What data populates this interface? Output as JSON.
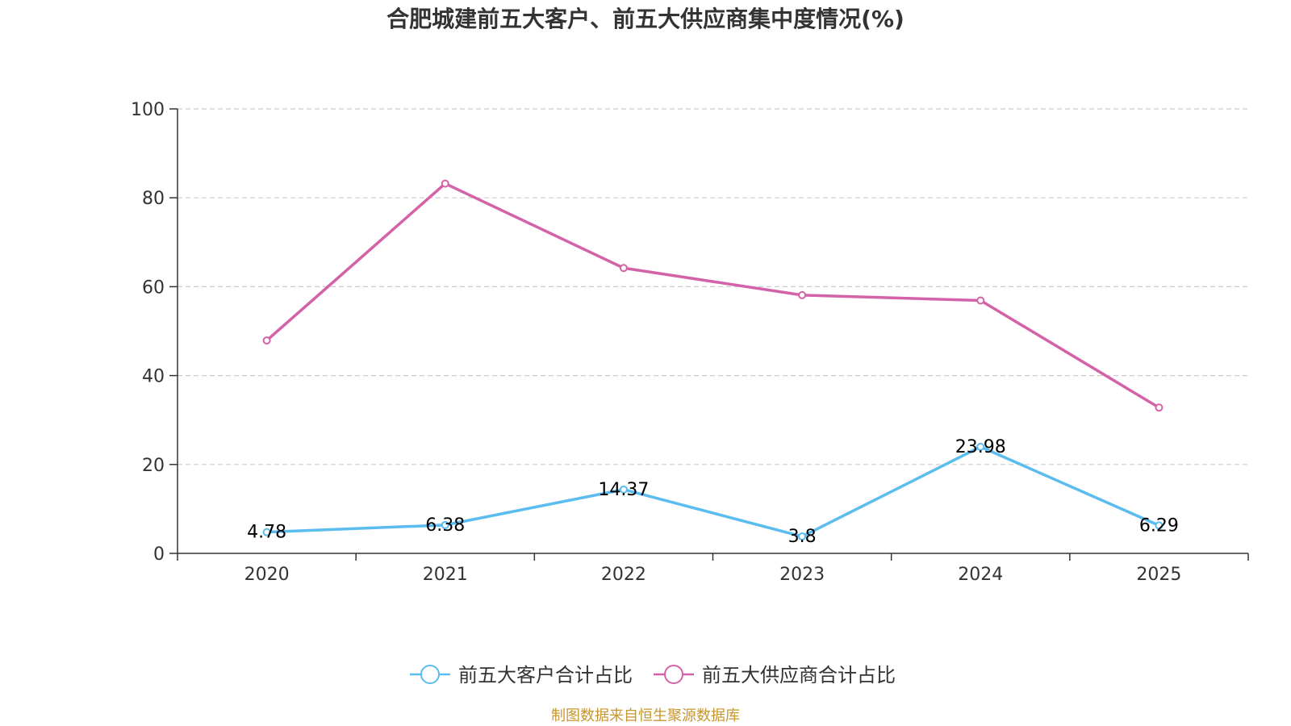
{
  "chart_data": {
    "type": "line",
    "title": "合肥城建前五大客户、前五大供应商集中度情况(%)",
    "categories": [
      "2020",
      "2021",
      "2022",
      "2023",
      "2024",
      "2025"
    ],
    "ylim": [
      0,
      100
    ],
    "yticks": [
      "0",
      "20",
      "40",
      "60",
      "80",
      "100"
    ],
    "grid": "horizontal dashed",
    "legend_position": "bottom-center",
    "series": [
      {
        "name": "前五大客户合计占比",
        "color": "#5bbcef",
        "values": [
          4.78,
          6.38,
          14.37,
          3.8,
          23.98,
          6.29
        ],
        "labels": [
          "4.78",
          "6.38",
          "14.37",
          "3.8",
          "23.98",
          "6.29"
        ],
        "show_labels": true
      },
      {
        "name": "前五大供应商合计占比",
        "color": "#d462a8",
        "values": [
          47.9,
          83.2,
          64.2,
          58.1,
          56.9,
          32.8
        ],
        "show_labels": false
      }
    ]
  },
  "footer": {
    "source_text": "制图数据来自恒生聚源数据库",
    "color": "#c8962e"
  }
}
